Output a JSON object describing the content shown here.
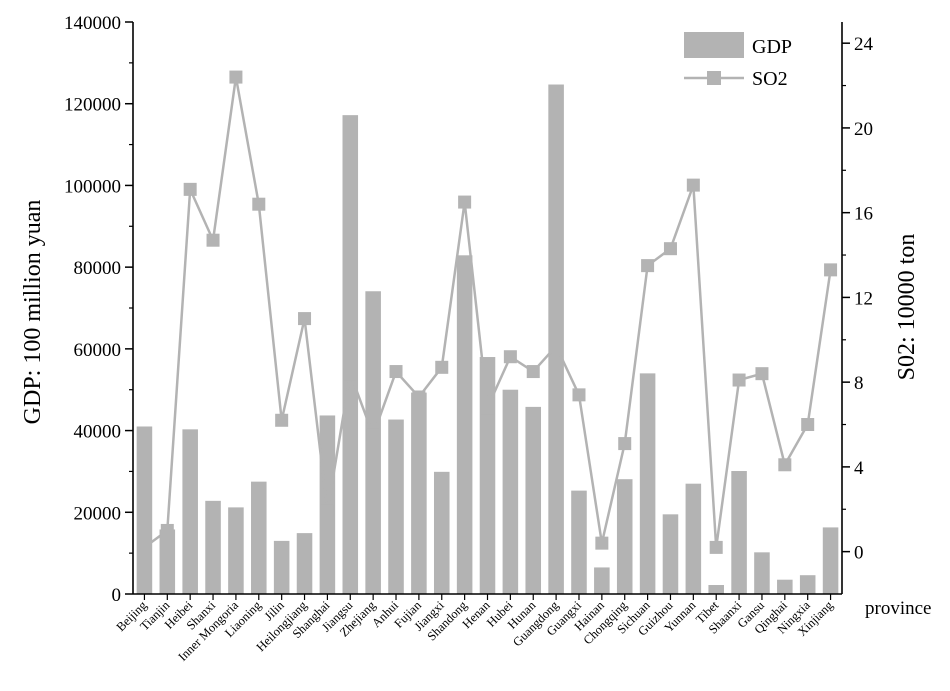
{
  "chart_data": {
    "type": "bar",
    "categories": [
      "Beijing",
      "Tianjin",
      "Heibei",
      "Shanxi",
      "Inner Mongoria",
      "Liaoning",
      "Jilin",
      "Heilongjiang",
      "Shanghai",
      "Jiangsu",
      "Zhejiang",
      "Anhui",
      "Fujian",
      "Jiangxi",
      "Shandong",
      "Henan",
      "Hubei",
      "Hunan",
      "Guangdong",
      "Guangxi",
      "Hainan",
      "Chongqing",
      "Sichuan",
      "Guizhou",
      "Yunnan",
      "Tibet",
      "Shaanxi",
      "Gansu",
      "Qinghai",
      "Ningxia",
      "Xinjiang"
    ],
    "series": [
      {
        "name": "GDP",
        "type": "bar",
        "axis": "left",
        "color": "#b3b3b3",
        "values": [
          41000,
          15800,
          40300,
          22800,
          21200,
          27500,
          13000,
          14900,
          43700,
          117200,
          74100,
          42700,
          49300,
          29900,
          82900,
          58000,
          50000,
          45800,
          124700,
          25300,
          6500,
          28100,
          54000,
          19500,
          27000,
          2200,
          30100,
          10200,
          3500,
          4600,
          16300
        ]
      },
      {
        "name": "SO2",
        "type": "line",
        "axis": "right",
        "color": "#b3b3b3",
        "values": [
          0.2,
          1.0,
          17.1,
          14.7,
          22.4,
          16.4,
          6.2,
          11.0,
          1.9,
          8.4,
          5.5,
          8.5,
          7.3,
          8.7,
          16.5,
          6.8,
          9.2,
          8.5,
          9.7,
          7.4,
          0.4,
          5.1,
          13.5,
          14.3,
          17.3,
          0.2,
          8.1,
          8.4,
          4.1,
          6.0,
          13.3
        ]
      }
    ],
    "xlabel": "province",
    "ylabel_left": "GDP: 100 million yuan",
    "ylabel_right": "S02: 10000 ton",
    "ylim_left": [
      0,
      140000
    ],
    "ylim_right": [
      -2,
      25
    ],
    "yticks_left": [
      "0",
      "20000",
      "40000",
      "60000",
      "80000",
      "100000",
      "120000",
      "140000"
    ],
    "yticks_right": [
      "0",
      "4",
      "8",
      "12",
      "16",
      "20",
      "24"
    ],
    "legend": {
      "position": "top-right",
      "entries": [
        "GDP",
        "SO2"
      ]
    },
    "grid": false
  }
}
